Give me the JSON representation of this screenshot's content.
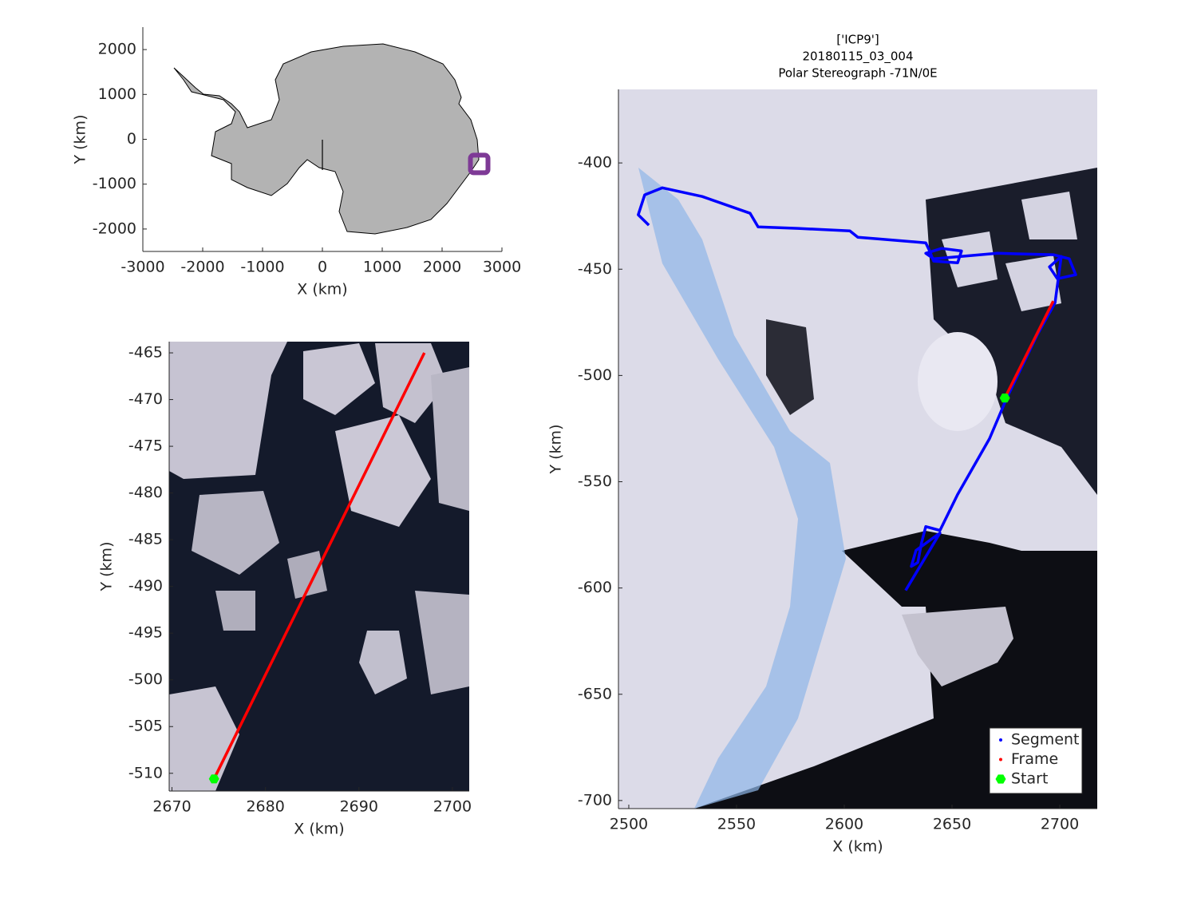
{
  "chart_data": [
    {
      "type": "map",
      "xlabel": "X (km)",
      "ylabel": "Y (km)",
      "xlim": [
        -3000,
        3000
      ],
      "ylim": [
        -2500,
        2500
      ],
      "xticks": [
        -3000,
        -2000,
        -1000,
        0,
        1000,
        2000,
        3000
      ],
      "yticks": [
        -2000,
        -1000,
        0,
        1000,
        2000
      ],
      "box": false,
      "series": [
        {
          "color": "#7e3a96",
          "marker": "square",
          "x": [
            2620
          ],
          "values": [
            -550
          ]
        }
      ]
    },
    {
      "type": "map",
      "xlabel": "X (km)",
      "ylabel": "Y (km)",
      "xlim": [
        2669.7,
        2701.8
      ],
      "ylim": [
        -511.9,
        -463.8
      ],
      "xticks": [
        2670,
        2680,
        2690,
        2700
      ],
      "yticks": [
        -510,
        -505,
        -500,
        -495,
        -490,
        -485,
        -480,
        -475,
        -470,
        -465
      ],
      "box": false,
      "series": [
        {
          "color": "#ff0000",
          "marker": "line",
          "x": [
            2674.5,
            2697
          ],
          "values": [
            -510.6,
            -465
          ]
        },
        {
          "color": "#00ff00",
          "marker": "hexagon",
          "x": [
            2674.5
          ],
          "values": [
            -510.6
          ]
        }
      ]
    },
    {
      "type": "map",
      "title": [
        "['ICP9']",
        "20180115_03_004",
        "Polar Stereograph -71N/0E"
      ],
      "xlabel": "X (km)",
      "ylabel": "Y (km)",
      "xlim": [
        2495.2,
        2717.4
      ],
      "ylim": [
        -703.8,
        -365.4
      ],
      "xticks": [
        2500,
        2550,
        2600,
        2650,
        2700
      ],
      "yticks": [
        -700,
        -650,
        -600,
        -550,
        -500,
        -450,
        -400
      ],
      "box": false,
      "legend": "southeast",
      "series": [
        {
          "name": "Segment",
          "color": "#0000ff",
          "marker": "line",
          "x": [
            2509.3,
            2504.4,
            2507.4,
            2515.6,
            2534.1,
            2556.3,
            2560.0,
            2578.5,
            2602.6,
            2606.3,
            2615.6,
            2637.8,
            2639.6,
            2641.5,
            2652.6,
            2654.4,
            2645.2,
            2637.8,
            2641.5,
            2671.1,
            2697.0,
            2704.4,
            2707.4,
            2698.9,
            2695.2,
            2700.7,
            2697.8,
            2689.6,
            2675.6,
            2667.4,
            2652.6,
            2644.4,
            2637.8,
            2635.9,
            2634.1,
            2631.1,
            2633.3,
            2644.4,
            2628.5
          ],
          "values": [
            -429.3,
            -424.4,
            -415.0,
            -411.7,
            -415.8,
            -423.7,
            -430.1,
            -430.8,
            -432.0,
            -435.0,
            -435.7,
            -437.6,
            -441.4,
            -446.2,
            -447.0,
            -441.4,
            -440.2,
            -442.5,
            -445.1,
            -442.5,
            -443.2,
            -445.1,
            -452.6,
            -454.5,
            -448.9,
            -444.0,
            -465.8,
            -480.8,
            -510.2,
            -529.7,
            -556.0,
            -572.9,
            -571.1,
            -578.6,
            -588.0,
            -589.8,
            -582.3,
            -574.1,
            -601.1
          ]
        },
        {
          "name": "Frame",
          "color": "#ff0000",
          "marker": "line",
          "x": [
            2674.5,
            2697
          ],
          "values": [
            -510.6,
            -465
          ]
        },
        {
          "name": "Start",
          "color": "#00ff00",
          "marker": "hexagon",
          "x": [
            2674.5
          ],
          "values": [
            -510.6
          ]
        }
      ]
    }
  ]
}
